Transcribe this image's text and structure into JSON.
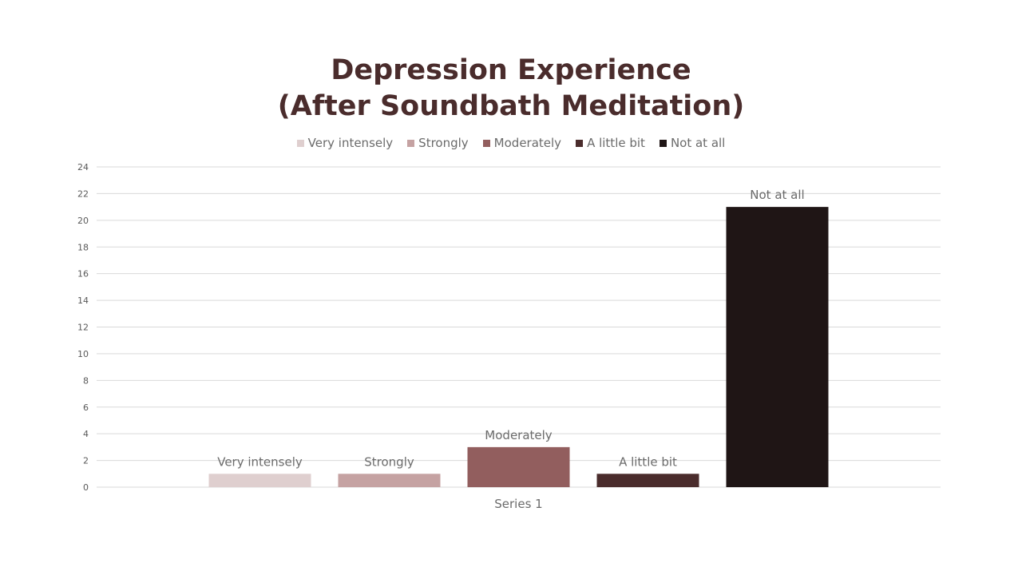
{
  "chart_data": {
    "type": "bar",
    "title": "Depression Experience",
    "subtitle": "(After Soundbath Meditation)",
    "categories": [
      "Series 1"
    ],
    "series": [
      {
        "name": "Very intensely",
        "values": [
          1
        ],
        "color": "#dfcfcf"
      },
      {
        "name": "Strongly",
        "values": [
          1
        ],
        "color": "#c5a2a2"
      },
      {
        "name": "Moderately",
        "values": [
          3
        ],
        "color": "#925e5e"
      },
      {
        "name": "A little bit",
        "values": [
          1
        ],
        "color": "#4a2c2c"
      },
      {
        "name": "Not at all",
        "values": [
          21
        ],
        "color": "#1f1515"
      }
    ],
    "ylim": [
      0,
      24
    ],
    "yticks": [
      0,
      2,
      4,
      6,
      8,
      10,
      12,
      14,
      16,
      18,
      20,
      22,
      24
    ],
    "grid": true,
    "legend": "top-center",
    "data_labels": "series name",
    "xlabel": "",
    "ylabel": ""
  }
}
